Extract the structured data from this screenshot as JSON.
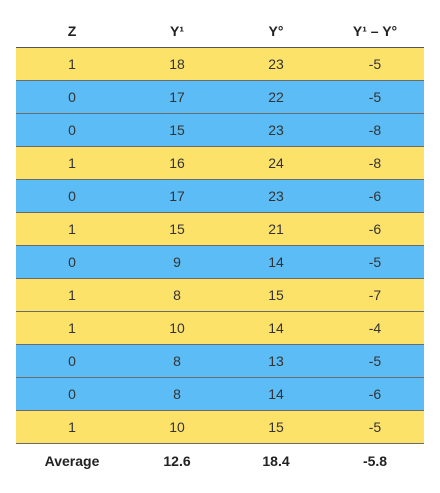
{
  "headers": [
    "Z",
    "Y¹",
    "Y°",
    "Y¹ – Y°"
  ],
  "rows": [
    [
      "1",
      "18",
      "23",
      "-5"
    ],
    [
      "0",
      "17",
      "22",
      "-5"
    ],
    [
      "0",
      "15",
      "23",
      "-8"
    ],
    [
      "1",
      "16",
      "24",
      "-8"
    ],
    [
      "0",
      "17",
      "23",
      "-6"
    ],
    [
      "1",
      "15",
      "21",
      "-6"
    ],
    [
      "0",
      "9",
      "14",
      "-5"
    ],
    [
      "1",
      "8",
      "15",
      "-7"
    ],
    [
      "1",
      "10",
      "14",
      "-4"
    ],
    [
      "0",
      "8",
      "13",
      "-5"
    ],
    [
      "0",
      "8",
      "14",
      "-6"
    ],
    [
      "1",
      "10",
      "15",
      "-5"
    ]
  ],
  "footer": [
    "Average",
    "12.6",
    "18.4",
    "-5.8"
  ],
  "colors": {
    "z1_row": "#fde26a",
    "z0_row": "#5cbcf5"
  }
}
